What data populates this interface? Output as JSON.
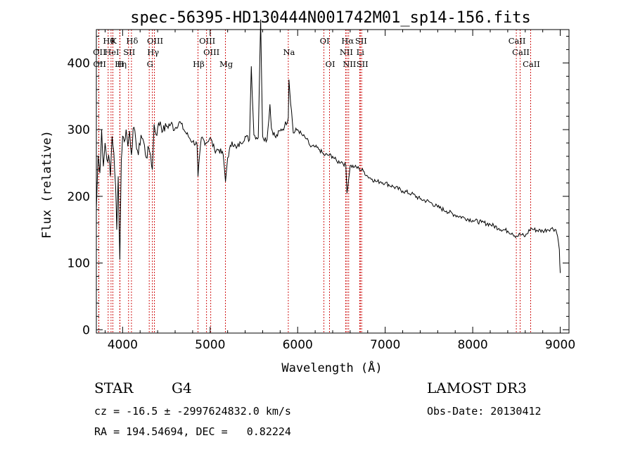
{
  "chart_data": {
    "type": "line",
    "title": "spec-56395-HD130444N001742M01_sp14-156.fits",
    "xlabel": "Wavelength (Å)",
    "ylabel": "Flux (relative)",
    "xlim": [
      3700,
      9100
    ],
    "ylim": [
      -5,
      450
    ],
    "xticks": [
      4000,
      5000,
      6000,
      7000,
      8000,
      9000
    ],
    "yticks": [
      0,
      100,
      200,
      300,
      400
    ],
    "grid": false,
    "series": [
      {
        "x": [
          3700,
          3720,
          3740,
          3760,
          3780,
          3800,
          3820,
          3840,
          3860,
          3880,
          3900,
          3920,
          3933,
          3950,
          3968,
          3985,
          4000,
          4020,
          4040,
          4060,
          4080,
          4101,
          4120,
          4150,
          4180,
          4210,
          4240,
          4270,
          4300,
          4320,
          4340,
          4360,
          4383,
          4400,
          4430,
          4460,
          4500,
          4550,
          4600,
          4650,
          4700,
          4750,
          4800,
          4850,
          4861,
          4900,
          4950,
          5000,
          5050,
          5100,
          5150,
          5175,
          5200,
          5250,
          5300,
          5350,
          5400,
          5450,
          5470,
          5500,
          5550,
          5577,
          5600,
          5650,
          5683,
          5700,
          5750,
          5800,
          5850,
          5893,
          5900,
          5950,
          6000,
          6050,
          6100,
          6150,
          6200,
          6250,
          6300,
          6350,
          6400,
          6450,
          6500,
          6550,
          6563,
          6600,
          6650,
          6700,
          6750,
          6800,
          6850,
          6900,
          6950,
          7000,
          7100,
          7200,
          7300,
          7400,
          7500,
          7600,
          7700,
          7800,
          7900,
          8000,
          8100,
          8200,
          8300,
          8400,
          8450,
          8498,
          8542,
          8600,
          8662,
          8700,
          8800,
          8850,
          8900,
          8950,
          8970,
          8990,
          9000
        ],
        "values": [
          180,
          260,
          235,
          300,
          245,
          280,
          255,
          262,
          230,
          290,
          265,
          215,
          150,
          230,
          105,
          255,
          290,
          282,
          300,
          275,
          298,
          262,
          302,
          285,
          262,
          292,
          282,
          258,
          272,
          262,
          240,
          308,
          292,
          302,
          312,
          298,
          305,
          308,
          302,
          312,
          300,
          290,
          282,
          278,
          230,
          288,
          280,
          288,
          270,
          270,
          262,
          222,
          258,
          282,
          272,
          280,
          290,
          285,
          395,
          292,
          288,
          465,
          290,
          285,
          338,
          302,
          288,
          298,
          305,
          318,
          375,
          295,
          300,
          292,
          286,
          274,
          274,
          270,
          262,
          262,
          260,
          252,
          252,
          246,
          205,
          246,
          244,
          242,
          238,
          230,
          226,
          222,
          222,
          220,
          214,
          208,
          204,
          196,
          192,
          184,
          178,
          172,
          168,
          164,
          161,
          158,
          152,
          148,
          145,
          140,
          143,
          140,
          152,
          150,
          148,
          150,
          152,
          150,
          140,
          120,
          85
        ]
      }
    ],
    "spectral_lines": [
      {
        "wavelength": 3835,
        "label": "Hθ",
        "row": 1
      },
      {
        "wavelength": 3889,
        "label": "K",
        "row": 1
      },
      {
        "wavelength": 4101,
        "label": "Hδ",
        "row": 1
      },
      {
        "wavelength": 4363,
        "label": "OIII",
        "row": 1
      },
      {
        "wavelength": 4959,
        "label": "OIII",
        "row": 1
      },
      {
        "wavelength": 6300,
        "label": "OI",
        "row": 1
      },
      {
        "wavelength": 6563,
        "label": "Hα",
        "row": 1
      },
      {
        "wavelength": 6716,
        "label": "SII",
        "row": 1
      },
      {
        "wavelength": 8498,
        "label": "CaII",
        "row": 1
      },
      {
        "wavelength": 3727,
        "label": "OII",
        "row": 2
      },
      {
        "wavelength": 3868,
        "label": "HeI",
        "row": 2
      },
      {
        "wavelength": 4068,
        "label": "SII",
        "row": 2
      },
      {
        "wavelength": 4340,
        "label": "Hγ",
        "row": 2
      },
      {
        "wavelength": 5007,
        "label": "OIII",
        "row": 2
      },
      {
        "wavelength": 5893,
        "label": "Na",
        "row": 2
      },
      {
        "wavelength": 6548,
        "label": "NII",
        "row": 2
      },
      {
        "wavelength": 6708,
        "label": "Li",
        "row": 2
      },
      {
        "wavelength": 8542,
        "label": "CaII",
        "row": 2
      },
      {
        "wavelength": 3729,
        "label": "OII",
        "row": 3
      },
      {
        "wavelength": 3970,
        "label": "Hη",
        "row": 3
      },
      {
        "wavelength": 3968,
        "label": "H",
        "row": 3
      },
      {
        "wavelength": 4304,
        "label": "G",
        "row": 3
      },
      {
        "wavelength": 4861,
        "label": "Hβ",
        "row": 3
      },
      {
        "wavelength": 5175,
        "label": "Mg",
        "row": 3
      },
      {
        "wavelength": 6364,
        "label": "OI",
        "row": 3
      },
      {
        "wavelength": 6583,
        "label": "NII",
        "row": 3
      },
      {
        "wavelength": 6731,
        "label": "SII",
        "row": 3
      },
      {
        "wavelength": 8662,
        "label": "CaII",
        "row": 3
      }
    ],
    "colors": {
      "spectrum": "#000000",
      "lines": "#cc0000",
      "axes": "#000000"
    }
  },
  "info": {
    "class_label": "STAR",
    "subclass": "G4",
    "survey": "LAMOST DR3",
    "cz_line": "cz = -16.5 ± -2997624832.0 km/s",
    "obs_date": "Obs-Date: 20130412",
    "radec_line": "RA = 194.54694, DEC =   0.82224"
  }
}
